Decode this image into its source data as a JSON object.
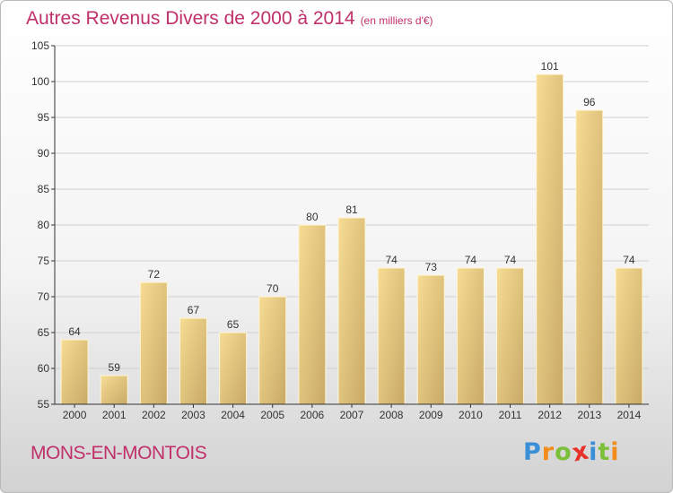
{
  "title": {
    "main": "Autres Revenus Divers de 2000 à 2014",
    "unit": "(en milliers d'€)"
  },
  "place": "MONS-EN-MONTOIS",
  "brand": {
    "letters": [
      "P",
      "r",
      "o",
      "x",
      "i",
      "t",
      "i"
    ],
    "colors": [
      "#3a8fd6",
      "#f28c1c",
      "#7cbf3a",
      "#e8312b",
      "#3a8fd6",
      "#7cbf3a",
      "#f28c1c"
    ]
  },
  "chart_data": {
    "type": "bar",
    "categories": [
      "2000",
      "2001",
      "2002",
      "2003",
      "2004",
      "2005",
      "2006",
      "2007",
      "2008",
      "2009",
      "2010",
      "2011",
      "2012",
      "2013",
      "2014"
    ],
    "values": [
      64,
      59,
      72,
      67,
      65,
      70,
      80,
      81,
      74,
      73,
      74,
      74,
      101,
      96,
      74
    ],
    "ylim": [
      55,
      105
    ],
    "yticks": [
      55,
      60,
      65,
      70,
      75,
      80,
      85,
      90,
      95,
      100,
      105
    ],
    "grid": true,
    "colors": {
      "bar_light": "#f7dc94",
      "bar_dark": "#c8aa66",
      "grid": "#d0d0d0",
      "axis": "#333333"
    }
  }
}
